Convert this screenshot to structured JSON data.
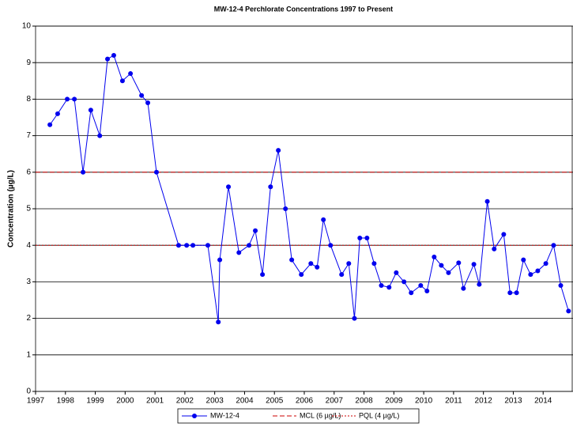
{
  "chart_data": {
    "type": "line",
    "title": "MW-12-4 Perchlorate Concentrations 1997 to Present",
    "y_label": "Concentration (µg/L)",
    "xlim": [
      1997,
      2015
    ],
    "xticks": [
      1997,
      1998,
      1999,
      2000,
      2001,
      2002,
      2003,
      2004,
      2005,
      2006,
      2007,
      2008,
      2009,
      2010,
      2011,
      2012,
      2013,
      2014
    ],
    "ylim": [
      0,
      10
    ],
    "yticks": [
      0,
      1,
      2,
      3,
      4,
      5,
      6,
      7,
      8,
      9,
      10
    ],
    "grid": true,
    "legend": "bottom",
    "series": [
      {
        "name": "MW-12-4",
        "color": "#0000ee",
        "x": [
          1997.48,
          1997.74,
          1998.06,
          1998.3,
          1998.59,
          1998.85,
          1999.15,
          1999.41,
          1999.62,
          1999.91,
          2000.18,
          2000.55,
          2000.76,
          2001.05,
          2001.79,
          2002.06,
          2002.27,
          2002.77,
          2003.12,
          2003.17,
          2003.46,
          2003.81,
          2004.15,
          2004.36,
          2004.6,
          2004.87,
          2005.13,
          2005.37,
          2005.58,
          2005.9,
          2006.22,
          2006.43,
          2006.64,
          2006.88,
          2007.25,
          2007.49,
          2007.68,
          2007.86,
          2008.1,
          2008.34,
          2008.58,
          2008.84,
          2009.08,
          2009.34,
          2009.58,
          2009.9,
          2010.11,
          2010.35,
          2010.59,
          2010.83,
          2011.17,
          2011.33,
          2011.68,
          2011.86,
          2012.13,
          2012.36,
          2012.68,
          2012.89,
          2013.11,
          2013.34,
          2013.58,
          2013.82,
          2014.09,
          2014.35,
          2014.59,
          2014.85
        ],
        "values": [
          7.3,
          7.6,
          8.0,
          8.0,
          6.0,
          7.7,
          7.0,
          9.1,
          9.2,
          8.5,
          8.7,
          8.1,
          7.9,
          6.0,
          4.0,
          4.0,
          4.0,
          4.0,
          1.9,
          3.6,
          5.6,
          3.8,
          4.0,
          4.4,
          3.2,
          5.6,
          6.6,
          5.0,
          3.6,
          3.2,
          3.5,
          3.4,
          4.7,
          4.0,
          3.2,
          3.5,
          2.0,
          4.2,
          4.2,
          3.5,
          2.9,
          2.85,
          3.25,
          3.0,
          2.7,
          2.9,
          2.75,
          3.68,
          3.45,
          3.25,
          3.52,
          2.82,
          3.48,
          2.93,
          5.2,
          3.9,
          4.3,
          2.7,
          2.7,
          3.6,
          3.2,
          3.3,
          3.5,
          4.0,
          2.9,
          2.2
        ]
      }
    ],
    "reference_lines": [
      {
        "name": "MCL (6 µg/L)",
        "value": 6,
        "color": "#cc0000",
        "style": "dashed"
      },
      {
        "name": "PQL (4 µg/L)",
        "value": 4,
        "color": "#cc0000",
        "style": "dotted"
      }
    ]
  }
}
